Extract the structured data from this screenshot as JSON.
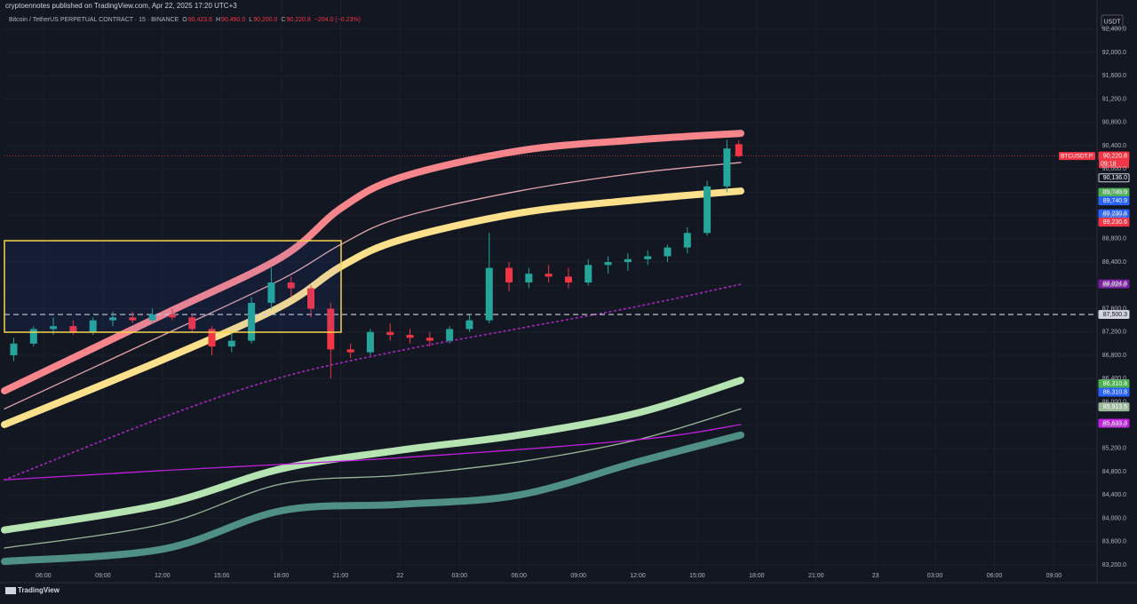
{
  "header": {
    "publisher": "cryptoennotes published on TradingView.com, Apr 22, 2025 17:20 UTC+3",
    "brand": "TradingView"
  },
  "chart_data": {
    "type": "candlestick",
    "title": "Bitcoin / TetherUS PERPETUAL CONTRACT · 15 · BINANCE",
    "ohlc_legend": [
      {
        "key": "O",
        "text": "90,423.6"
      },
      {
        "key": "H",
        "text": "90,490.0"
      },
      {
        "key": "L",
        "text": "90,200.0"
      },
      {
        "key": "C",
        "text": "90,220.8"
      }
    ],
    "change_text": "−204.0 (−0.23%)",
    "currency": "USDT",
    "symbol_tag": "BTCUSDT.P",
    "countdown": "09:18",
    "up_color": "#26a69a",
    "down_color": "#f23645",
    "x": [
      4.5,
      5.5,
      6.5,
      7.5,
      8.5,
      9.5,
      10.5,
      11.5,
      12.5,
      13.5,
      14.5,
      15.5,
      16.5,
      17.5,
      18.5,
      19.5,
      20.5,
      21.5,
      22.5,
      23.5,
      24.5,
      25.5,
      26.5,
      27.5,
      28.5,
      29.5,
      30.5,
      31.5,
      32.5,
      33.5,
      34.5,
      35.5,
      36.5,
      37.5,
      38.5,
      39.5,
      40.5,
      41.1
    ],
    "open": [
      86800,
      87000,
      87250,
      87300,
      87200,
      87400,
      87450,
      87400,
      87500,
      87450,
      87250,
      86950,
      87050,
      87700,
      88050,
      87950,
      87600,
      86900,
      86850,
      87200,
      87150,
      87100,
      87050,
      87250,
      87400,
      88300,
      88050,
      88200,
      88150,
      88050,
      88350,
      88400,
      88450,
      88500,
      88650,
      88900,
      89700,
      90423.6
    ],
    "high": [
      87100,
      87300,
      87450,
      87400,
      87450,
      87550,
      87550,
      87600,
      87600,
      87500,
      87300,
      87200,
      87800,
      88300,
      88150,
      88000,
      87700,
      87000,
      87250,
      87350,
      87250,
      87200,
      87300,
      87500,
      88900,
      88400,
      88300,
      88350,
      88300,
      88450,
      88500,
      88550,
      88600,
      88700,
      89000,
      89800,
      90500,
      90490
    ],
    "low": [
      86700,
      86950,
      87150,
      87150,
      87150,
      87300,
      87350,
      87350,
      87400,
      87200,
      86800,
      86850,
      87000,
      87600,
      87800,
      87450,
      86400,
      86750,
      86800,
      87050,
      87000,
      86950,
      87000,
      87200,
      87350,
      87900,
      87950,
      88050,
      87950,
      88000,
      88200,
      88250,
      88350,
      88400,
      88550,
      88850,
      89600,
      90200
    ],
    "close": [
      87000,
      87250,
      87300,
      87200,
      87400,
      87450,
      87400,
      87500,
      87450,
      87250,
      86950,
      87050,
      87700,
      88050,
      87950,
      87600,
      86900,
      86850,
      87200,
      87150,
      87100,
      87050,
      87250,
      87400,
      88300,
      88050,
      88200,
      88150,
      88050,
      88350,
      88400,
      88450,
      88500,
      88650,
      88900,
      89700,
      90350,
      90220.8
    ],
    "series": [
      {
        "color": "#f7868c",
        "style": "thick",
        "x": [
          4.03,
          12,
          18,
          21,
          24,
          30,
          36,
          41.2
        ],
        "values": [
          86190,
          87490,
          88480,
          89320,
          89850,
          90310,
          90500,
          90610
        ]
      },
      {
        "color": "#e6a6ae",
        "style": "thin",
        "x": [
          4.03,
          12,
          18,
          21,
          24,
          30,
          36,
          41.2
        ],
        "values": [
          85880,
          87140,
          88100,
          88700,
          89160,
          89620,
          89930,
          90110
        ]
      },
      {
        "color": "#fde08c",
        "style": "thick",
        "x": [
          4.03,
          12,
          18,
          21,
          24,
          30,
          36,
          41.2
        ],
        "values": [
          85610,
          86720,
          87640,
          88320,
          88780,
          89240,
          89470,
          89620
        ]
      },
      {
        "color": "#b6e3b2",
        "style": "thick",
        "x": [
          4.03,
          12,
          18,
          24,
          30,
          36,
          41.2
        ],
        "values": [
          83800,
          84240,
          84850,
          85170,
          85430,
          85810,
          86370
        ]
      },
      {
        "color": "#9bb89a",
        "style": "thin",
        "x": [
          4.03,
          12,
          18,
          24,
          30,
          36,
          41.2
        ],
        "values": [
          83490,
          83900,
          84590,
          84740,
          84970,
          85350,
          85880
        ]
      },
      {
        "color": "#4f8f84",
        "style": "thick",
        "x": [
          4.03,
          12,
          18,
          24,
          30,
          36,
          41.2
        ],
        "values": [
          83260,
          83470,
          84130,
          84240,
          84400,
          84970,
          85430
        ]
      },
      {
        "color": "#c21ee0",
        "style": "thin",
        "x": [
          4.03,
          12,
          24,
          36,
          41.2
        ],
        "values": [
          84660,
          84820,
          85040,
          85350,
          85610
        ]
      },
      {
        "color": "#9c27b0",
        "style": "dotted",
        "x": [
          4.03,
          12,
          18,
          24,
          30,
          36,
          41.2
        ],
        "values": [
          84660,
          85730,
          86420,
          86880,
          87260,
          87640,
          88020
        ]
      }
    ],
    "price_tags": [
      {
        "value": 90220.8,
        "label": "90,220.8",
        "color": "#f23645"
      },
      {
        "value": 90136.0,
        "label": "90,136.0",
        "color": "#d1d4dc"
      },
      {
        "value": 89740.9,
        "label": "89,740.9",
        "color": "#4caf50"
      },
      {
        "value": 89740.9,
        "label": "89,740.9",
        "color": "#2962ff"
      },
      {
        "value": 89230.6,
        "label": "89,230.6",
        "color": "#2962ff"
      },
      {
        "value": 89230.6,
        "label": "89,230.6",
        "color": "#f23645"
      },
      {
        "value": 88024.8,
        "label": "88,024.8",
        "color": "#7b1fa2"
      },
      {
        "value": 87500.3,
        "label": "87,500.3",
        "color": "#d1d4dc"
      },
      {
        "value": 86310.8,
        "label": "86,310.8",
        "color": "#4caf50"
      },
      {
        "value": 86310.8,
        "label": "86,310.8",
        "color": "#2962ff"
      },
      {
        "value": 85913.5,
        "label": "85,913.5",
        "color": "#9bb89a"
      },
      {
        "value": 85633.3,
        "label": "85,633.3",
        "color": "#c21ee0"
      }
    ],
    "xlim": [
      4.03,
      59.18
    ],
    "xticks": [
      {
        "value": 6,
        "label": "06:00"
      },
      {
        "value": 9,
        "label": "09:00"
      },
      {
        "value": 12,
        "label": "12:00"
      },
      {
        "value": 15,
        "label": "15:00"
      },
      {
        "value": 18,
        "label": "18:00"
      },
      {
        "value": 21,
        "label": "21:00"
      },
      {
        "value": 24,
        "label": "22"
      },
      {
        "value": 27,
        "label": "03:00"
      },
      {
        "value": 30,
        "label": "06:00"
      },
      {
        "value": 33,
        "label": "09:00"
      },
      {
        "value": 36,
        "label": "12:00"
      },
      {
        "value": 39,
        "label": "15:00"
      },
      {
        "value": 42,
        "label": "18:00"
      },
      {
        "value": 45,
        "label": "21:00"
      },
      {
        "value": 48,
        "label": "23"
      },
      {
        "value": 51,
        "label": "03:00"
      },
      {
        "value": 54,
        "label": "06:00"
      },
      {
        "value": 57,
        "label": "09:00"
      }
    ],
    "ylim": [
      83139,
      92595
    ],
    "yticks": [
      {
        "value": 83200,
        "label": "83,200.0"
      },
      {
        "value": 83600,
        "label": "83,600.0"
      },
      {
        "value": 84000,
        "label": "84,000.0"
      },
      {
        "value": 84400,
        "label": "84,400.0"
      },
      {
        "value": 84800,
        "label": "84,800.0"
      },
      {
        "value": 85200,
        "label": "85,200.0"
      },
      {
        "value": 85600,
        "label": "85,600.0"
      },
      {
        "value": 86000,
        "label": "86,000.0"
      },
      {
        "value": 86400,
        "label": "86,400.0"
      },
      {
        "value": 86800,
        "label": "86,800.0"
      },
      {
        "value": 87200,
        "label": "87,200.0"
      },
      {
        "value": 87600,
        "label": "87,600.0"
      },
      {
        "value": 88000,
        "label": "88,000.0"
      },
      {
        "value": 88400,
        "label": "88,400.0"
      },
      {
        "value": 88800,
        "label": "88,800.0"
      },
      {
        "value": 89200,
        "label": "89,200.0"
      },
      {
        "value": 89600,
        "label": "89,600.0"
      },
      {
        "value": 90000,
        "label": "90,000.0"
      },
      {
        "value": 90400,
        "label": "90,400.0"
      },
      {
        "value": 90800,
        "label": "90,800.0"
      },
      {
        "value": 91200,
        "label": "91,200.0"
      },
      {
        "value": 91600,
        "label": "91,600.0"
      },
      {
        "value": 92000,
        "label": "92,000.0"
      },
      {
        "value": 92400,
        "label": "92,400.0"
      }
    ],
    "grid": true
  }
}
